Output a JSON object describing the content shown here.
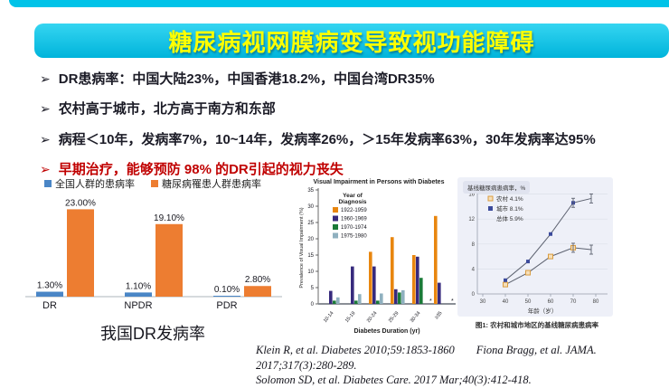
{
  "page": {
    "bg": "#ffffff",
    "accent_cyan": "#00c3e8",
    "title_color": "#ffff00",
    "emphasis_red": "#c00000"
  },
  "header": {
    "title": "糖尿病视网膜病变导致视功能障碍"
  },
  "bullets": [
    {
      "marker": "➢",
      "text": "DR患病率：中国大陆23%，中国香港18.2%，中国台湾DR35%",
      "emphasis": false
    },
    {
      "marker": "➢",
      "text": "农村高于城市，北方高于南方和东部",
      "emphasis": false
    },
    {
      "marker": "➢",
      "text": "病程＜10年，发病率7%，10~14年，发病率26%，＞15年发病率63%，30年发病率达95%",
      "emphasis": false
    },
    {
      "marker": "➢",
      "text": "早期治疗，能够预防 98% 的DR引起的视力丧失",
      "emphasis": true
    }
  ],
  "citations": [
    "Klein R, et al. Diabetes 2010;59:1853-1860",
    "Fiona Bragg, et al. JAMA. 2017;317(3):280-289.",
    "Solomon SD, et al. Diabetes Care. 2017 Mar;40(3):412-418."
  ],
  "chart_data": [
    {
      "id": "china-dr-prevalence",
      "type": "bar",
      "title": "我国DR发病率",
      "categories": [
        "DR",
        "NPDR",
        "PDR"
      ],
      "series": [
        {
          "name": "全国人群的患病率",
          "color": "#4a86c6",
          "values": [
            1.3,
            1.1,
            0.1
          ],
          "labels": [
            "1.30%",
            "1.10%",
            "0.10%"
          ]
        },
        {
          "name": "糖尿病罹患人群患病率",
          "color": "#ed7d31",
          "values": [
            23.0,
            19.1,
            2.8
          ],
          "labels": [
            "23.00%",
            "19.10%",
            "2.80%"
          ]
        }
      ],
      "ylim": [
        0,
        25
      ],
      "legend_position": "top",
      "grid": false
    },
    {
      "id": "visual-impairment-by-duration",
      "type": "bar",
      "title": "Visual Impairment in Persons with Diabetes",
      "legend_title": "Year of Diagnosis",
      "categories": [
        "10-14",
        "15-19",
        "20-24",
        "25-29",
        "30-34",
        "≥35"
      ],
      "series": [
        {
          "name": "1922-1959",
          "color": "#e8860f",
          "values": [
            0,
            0,
            16,
            20.5,
            15,
            27
          ]
        },
        {
          "name": "1960-1969",
          "color": "#372a7d",
          "values": [
            4,
            11.5,
            11.5,
            4.5,
            14.5,
            6.5
          ]
        },
        {
          "name": "1970-1974",
          "color": "#1a7a38",
          "values": [
            1,
            1,
            1,
            3.5,
            8,
            0
          ]
        },
        {
          "name": "1975-1980",
          "color": "#8fb0bf",
          "values": [
            2,
            3,
            3.2,
            4.2,
            0,
            0
          ]
        }
      ],
      "xlabel": "Diabetes Duration (yr)",
      "ylabel": "Prevalence of Visual Impairment (%)",
      "ylim": [
        0,
        35
      ],
      "yticks": [
        0,
        5,
        10,
        15,
        20,
        25,
        30,
        35
      ],
      "asterisk_groups": [
        4,
        5
      ],
      "legend_position": "top-left-inside",
      "grid": false
    },
    {
      "id": "baseline-diabetes-prevalence-by-age",
      "type": "line",
      "panel_label": "基线糖尿病患病率，%",
      "caption": "图1: 农村和城市地区的基线糖尿病患病率",
      "xlabel": "年龄（岁）",
      "xticks": [
        30,
        40,
        50,
        60,
        70,
        80
      ],
      "yticks": [
        0,
        4,
        8,
        12,
        16
      ],
      "xlim": [
        28,
        82
      ],
      "ylim": [
        0,
        16
      ],
      "x": [
        40,
        50,
        60,
        70,
        78
      ],
      "series": [
        {
          "name": "农村 4.1%",
          "color": "#d99c3f",
          "marker": "open-square",
          "values": [
            1.5,
            3.4,
            6.0,
            7.4,
            7.1
          ]
        },
        {
          "name": "城市 8.1%",
          "color": "#3b4a9b",
          "marker": "filled-square",
          "values": [
            2.2,
            5.2,
            9.6,
            14.6,
            15.3
          ]
        }
      ],
      "legend_note": "总体 5.9%",
      "grid": true,
      "legend_position": "top-left-inside"
    }
  ]
}
